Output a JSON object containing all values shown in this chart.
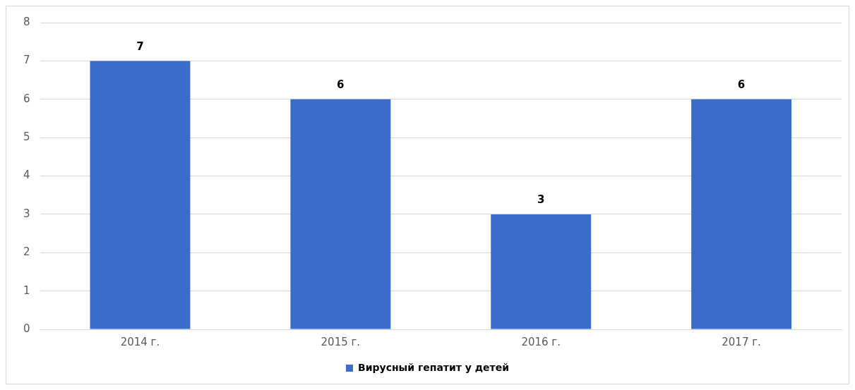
{
  "chart_data": {
    "type": "bar",
    "categories": [
      "2014 г.",
      "2015 г.",
      "2016 г.",
      "2017 г."
    ],
    "series": [
      {
        "name": "Вирусный гепатит у детей",
        "color": "#3b6cc9",
        "values": [
          7,
          6,
          3,
          6
        ]
      }
    ],
    "ylim": [
      0,
      8
    ],
    "yticks": [
      0,
      1,
      2,
      3,
      4,
      5,
      6,
      7,
      8
    ],
    "grid": "y",
    "legend": "bottom",
    "data_labels": true
  }
}
